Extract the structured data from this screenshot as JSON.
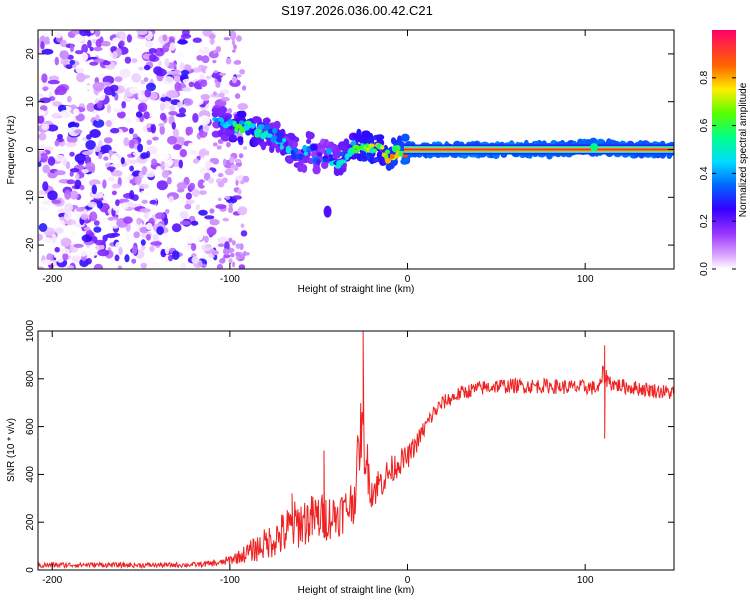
{
  "title": "S197.2026.036.00.42.C21",
  "chart_data": [
    {
      "type": "heatmap",
      "xlabel": "Height of straight line (km)",
      "ylabel": "Frequency (Hz)",
      "xlim": [
        -208,
        150
      ],
      "ylim": [
        -25,
        25
      ],
      "x_ticks": [
        -200,
        -100,
        0,
        100
      ],
      "y_ticks": [
        -20,
        -10,
        0,
        10,
        20
      ],
      "colorbar": {
        "label": "Normalized spectral amplitude",
        "range": [
          0,
          1
        ],
        "ticks": [
          0.0,
          0.2,
          0.4,
          0.6,
          0.8
        ],
        "colors": [
          "#ffffff",
          "#cc88ff",
          "#7a1fe0",
          "#0000ff",
          "#00c8ff",
          "#00ff66",
          "#c8ff00",
          "#ffcc00",
          "#ff3300",
          "#ff0066"
        ]
      },
      "ridge": {
        "x": [
          -108,
          -100,
          -95,
          -90,
          -85,
          -80,
          -75,
          -70,
          -65,
          -60,
          -55,
          -50,
          -45,
          -40,
          -35,
          -30,
          -25,
          -20,
          -15,
          -10,
          -5,
          0,
          20,
          50,
          80,
          105,
          130,
          150
        ],
        "frequency": [
          6,
          5,
          4.5,
          5,
          4,
          3.5,
          3,
          1.5,
          0,
          -1.5,
          0.5,
          -2,
          -1,
          -3,
          -1,
          0.5,
          1,
          0.5,
          -0.5,
          -1.5,
          -0.5,
          0,
          0,
          0,
          0,
          0.5,
          0,
          0
        ],
        "amplitude": [
          0.4,
          0.5,
          0.6,
          0.7,
          0.55,
          0.5,
          0.45,
          0.5,
          0.45,
          0.4,
          0.45,
          0.35,
          0.4,
          0.45,
          0.5,
          0.6,
          0.7,
          0.75,
          0.7,
          0.75,
          0.8,
          0.9,
          0.92,
          0.92,
          0.92,
          0.9,
          0.92,
          0.9
        ]
      },
      "noise_region_x": [
        -208,
        -100
      ]
    },
    {
      "type": "line",
      "xlabel": "Height of straight line (km)",
      "ylabel": "SNR (10 * v/v)",
      "xlim": [
        -208,
        150
      ],
      "ylim": [
        0,
        1000
      ],
      "x_ticks": [
        -200,
        -100,
        0,
        100
      ],
      "y_ticks": [
        0,
        200,
        400,
        600,
        800,
        1000
      ],
      "color": "#ee2222",
      "series": [
        {
          "name": "SNR",
          "x": [
            -208,
            -180,
            -150,
            -120,
            -105,
            -95,
            -85,
            -75,
            -70,
            -65,
            -60,
            -55,
            -50,
            -45,
            -40,
            -35,
            -30,
            -26,
            -23,
            -20,
            -15,
            -10,
            -5,
            0,
            5,
            10,
            15,
            20,
            25,
            30,
            40,
            50,
            60,
            70,
            80,
            90,
            100,
            108,
            110,
            115,
            120,
            130,
            140,
            150
          ],
          "y": [
            20,
            22,
            20,
            22,
            30,
            55,
            90,
            130,
            150,
            180,
            200,
            210,
            220,
            220,
            230,
            250,
            300,
            600,
            450,
            330,
            370,
            410,
            450,
            470,
            530,
            600,
            660,
            700,
            720,
            740,
            760,
            770,
            770,
            770,
            770,
            765,
            765,
            760,
            820,
            780,
            770,
            760,
            750,
            740
          ],
          "noise_amplitude": [
            18,
            15,
            15,
            15,
            20,
            40,
            80,
            110,
            140,
            150,
            150,
            150,
            150,
            140,
            140,
            130,
            150,
            200,
            160,
            120,
            100,
            90,
            80,
            70,
            60,
            55,
            50,
            45,
            45,
            45,
            45,
            45,
            45,
            45,
            45,
            45,
            45,
            45,
            60,
            45,
            45,
            45,
            45,
            45
          ],
          "spikes": [
            {
              "x": -65,
              "y": 320
            },
            {
              "x": -47,
              "y": 500
            },
            {
              "x": -25,
              "y": 1000
            },
            {
              "x": 111,
              "y": 940
            },
            {
              "x": 111,
              "y": 550
            }
          ]
        }
      ]
    }
  ]
}
